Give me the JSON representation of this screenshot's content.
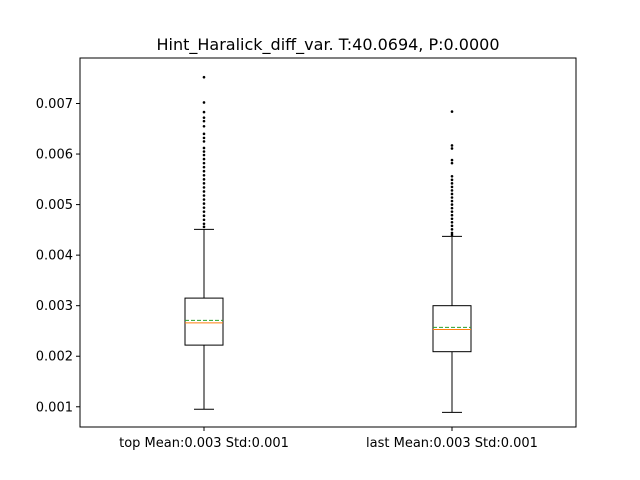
{
  "chart_data": {
    "type": "boxplot",
    "title": "Hint_Haralick_diff_var. T:40.0694, P:0.0000",
    "xlabel": "",
    "ylabel": "",
    "ylim": [
      0.0006,
      0.0079
    ],
    "yticks": [
      0.001,
      0.002,
      0.003,
      0.004,
      0.005,
      0.006,
      0.007
    ],
    "ytick_labels": [
      "0.001",
      "0.002",
      "0.003",
      "0.004",
      "0.005",
      "0.006",
      "0.007"
    ],
    "categories": [
      "top Mean:0.003 Std:0.001",
      "last Mean:0.003 Std:0.001"
    ],
    "boxes": [
      {
        "label": "top Mean:0.003 Std:0.001",
        "whisker_low": 0.00095,
        "q1": 0.00222,
        "median": 0.00266,
        "mean": 0.00271,
        "q3": 0.00315,
        "whisker_high": 0.00451,
        "outliers": [
          0.00752,
          0.00702,
          0.00683,
          0.00672,
          0.00665,
          0.00655,
          0.0064,
          0.00632,
          0.00625,
          0.00612,
          0.00605,
          0.00598,
          0.0059,
          0.00582,
          0.00574,
          0.00566,
          0.00558,
          0.0055,
          0.00542,
          0.00534,
          0.00526,
          0.00518,
          0.0051,
          0.00502,
          0.00494,
          0.00486,
          0.00478,
          0.0047,
          0.00462,
          0.00456
        ]
      },
      {
        "label": "last Mean:0.003 Std:0.001",
        "whisker_low": 0.00089,
        "q1": 0.00209,
        "median": 0.00253,
        "mean": 0.00257,
        "q3": 0.003,
        "whisker_high": 0.00437,
        "outliers": [
          0.00684,
          0.00617,
          0.00611,
          0.00588,
          0.00582,
          0.00556,
          0.00549,
          0.00542,
          0.00535,
          0.00528,
          0.00521,
          0.00514,
          0.00507,
          0.005,
          0.00493,
          0.00486,
          0.00479,
          0.00472,
          0.00465,
          0.00458,
          0.00451,
          0.00444,
          0.0044
        ]
      }
    ],
    "colors": {
      "box": "#000000",
      "median": "#ff7f0e",
      "mean": "#2ca02c",
      "outlier": "#000000",
      "axes": "#000000"
    },
    "median_line_style": "solid",
    "mean_line_style": "dashed",
    "grid": false,
    "legend": "none"
  }
}
